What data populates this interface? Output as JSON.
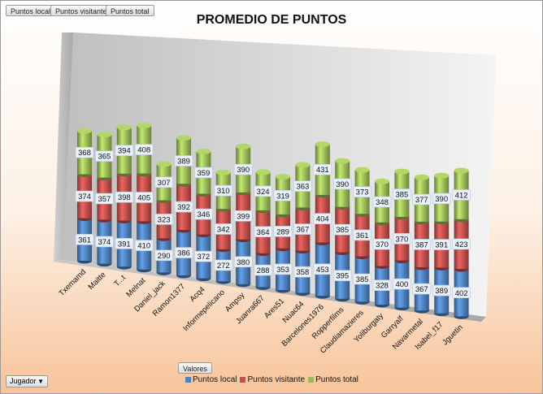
{
  "filter_buttons": [
    "Puntos local",
    "Puntos visitante",
    "Puntos total"
  ],
  "values_button": "Valores",
  "row_field_dropdown": {
    "label": "Jugador",
    "icon": "chevron-down-icon"
  },
  "chart_data": {
    "type": "bar",
    "stacked": true,
    "style": "3d-cylinder",
    "title": "PROMEDIO DE PUNTOS",
    "categories": [
      "Txemamd",
      "Maitte",
      "T...t",
      "Melnat",
      "Daniel_jack",
      "Ramon1377",
      "Acq4",
      "Informepelicano",
      "Ampsy",
      "Juanra667",
      "Ares51",
      "Nuac64",
      "Barcelones1976",
      "Ropperfilms",
      "Claudiamazieres",
      "Yoliburgaty",
      "Garryalf",
      "Navarmetal",
      "Isabel_f17",
      "Jguetin"
    ],
    "series": [
      {
        "name": "Puntos local",
        "color": "#4f81bd",
        "values": [
          361,
          374,
          391,
          410,
          290,
          386,
          372,
          272,
          380,
          288,
          353,
          358,
          453,
          395,
          385,
          328,
          400,
          367,
          389,
          402
        ]
      },
      {
        "name": "Puntos visitante",
        "color": "#c0504d",
        "values": [
          374,
          357,
          398,
          405,
          323,
          392,
          346,
          342,
          399,
          364,
          289,
          367,
          404,
          385,
          361,
          370,
          370,
          387,
          391,
          423
        ]
      },
      {
        "name": "Puntos total",
        "color": "#9bbb59",
        "values": [
          368,
          365,
          394,
          408,
          307,
          389,
          359,
          310,
          390,
          324,
          319,
          363,
          431,
          390,
          373,
          348,
          385,
          377,
          390,
          412
        ]
      }
    ],
    "legend_position": "bottom"
  }
}
